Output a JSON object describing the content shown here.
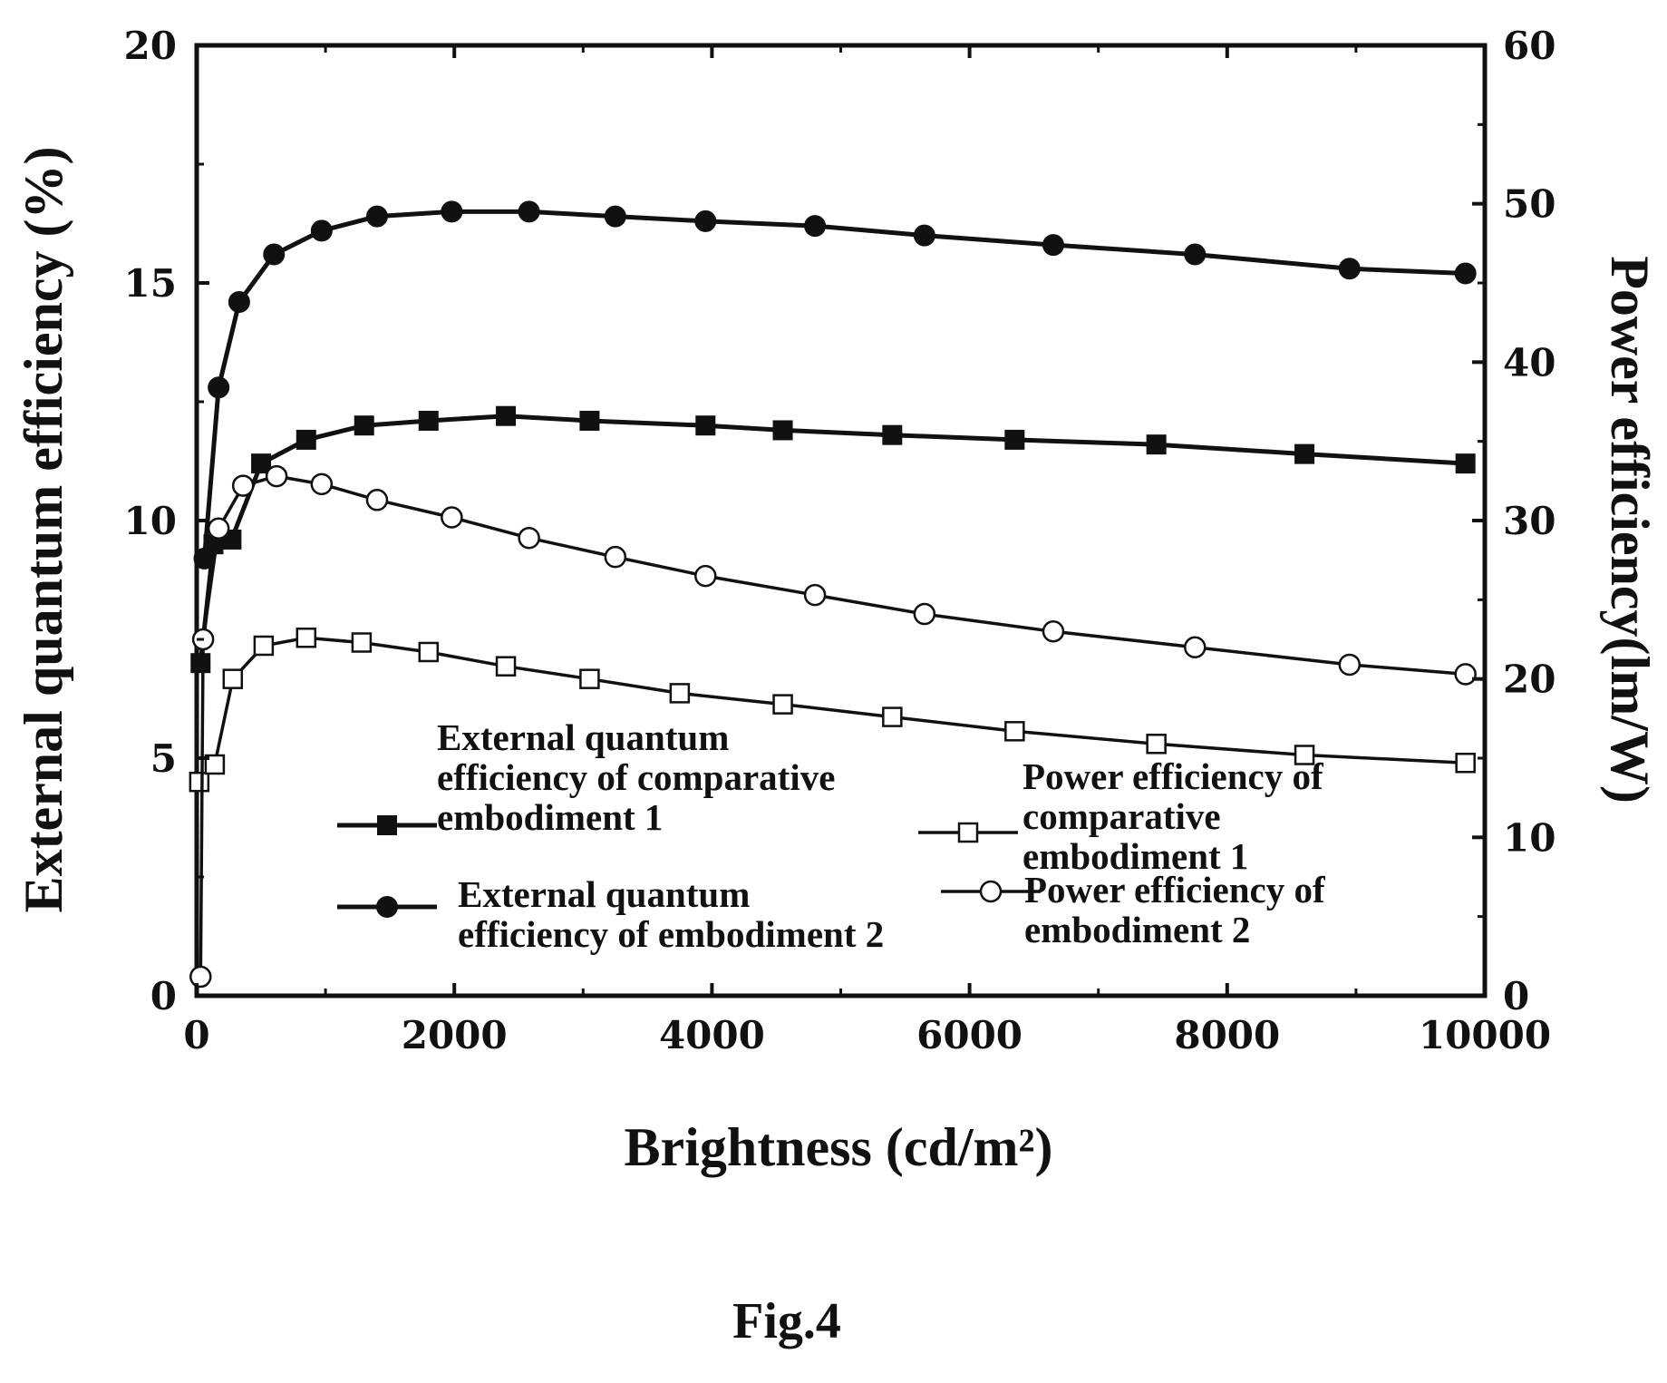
{
  "chart_data": {
    "type": "line",
    "xlabel": "Brightness (cd/m²)",
    "ylabel_left": "External quantum efficiency (%)",
    "ylabel_right": "Power efficiency(lm/W)",
    "xlim": [
      0,
      10000
    ],
    "ylim_left": [
      0,
      20
    ],
    "ylim_right": [
      0,
      60
    ],
    "x_ticks": [
      0,
      2000,
      4000,
      6000,
      8000,
      10000
    ],
    "y_left_ticks": [
      0,
      5,
      10,
      15,
      20
    ],
    "y_right_ticks": [
      0,
      10,
      20,
      30,
      40,
      50,
      60
    ],
    "grid": false,
    "legend_position": "center-bottom, inside plot",
    "series": [
      {
        "key": "eqe_comp1",
        "name": "External quantum efficiency of comparative embodiment 1",
        "legend_lines": [
          "External quantum",
          "efficiency of comparative",
          "embodiment 1"
        ],
        "axis": "left",
        "marker": "filled-square",
        "points": [
          [
            30,
            7.0
          ],
          [
            130,
            9.5
          ],
          [
            270,
            9.6
          ],
          [
            500,
            11.2
          ],
          [
            850,
            11.7
          ],
          [
            1300,
            12.0
          ],
          [
            1800,
            12.1
          ],
          [
            2400,
            12.2
          ],
          [
            3050,
            12.1
          ],
          [
            3950,
            12.0
          ],
          [
            4550,
            11.9
          ],
          [
            5400,
            11.8
          ],
          [
            6350,
            11.7
          ],
          [
            7450,
            11.6
          ],
          [
            8600,
            11.4
          ],
          [
            9850,
            11.2
          ]
        ]
      },
      {
        "key": "eqe_emb2",
        "name": "External quantum efficiency of embodiment 2",
        "legend_lines": [
          "External quantum",
          "efficiency of embodiment 2"
        ],
        "axis": "left",
        "marker": "filled-circle",
        "points": [
          [
            60,
            9.2
          ],
          [
            170,
            12.8
          ],
          [
            330,
            14.6
          ],
          [
            600,
            15.6
          ],
          [
            970,
            16.1
          ],
          [
            1400,
            16.4
          ],
          [
            1980,
            16.5
          ],
          [
            2580,
            16.5
          ],
          [
            3250,
            16.4
          ],
          [
            3950,
            16.3
          ],
          [
            4800,
            16.2
          ],
          [
            5650,
            16.0
          ],
          [
            6650,
            15.8
          ],
          [
            7750,
            15.6
          ],
          [
            8950,
            15.3
          ],
          [
            9850,
            15.2
          ]
        ]
      },
      {
        "key": "pe_comp1",
        "name": "Power efficiency of comparative embodiment 1",
        "legend_lines": [
          "Power efficiency of",
          "comparative",
          "embodiment 1"
        ],
        "axis": "right",
        "marker": "open-square",
        "points": [
          [
            20,
            13.5
          ],
          [
            140,
            14.6
          ],
          [
            280,
            20.0
          ],
          [
            520,
            22.1
          ],
          [
            850,
            22.6
          ],
          [
            1280,
            22.3
          ],
          [
            1800,
            21.7
          ],
          [
            2400,
            20.8
          ],
          [
            3050,
            20.0
          ],
          [
            3750,
            19.1
          ],
          [
            4550,
            18.4
          ],
          [
            5400,
            17.6
          ],
          [
            6350,
            16.7
          ],
          [
            7450,
            15.9
          ],
          [
            8600,
            15.2
          ],
          [
            9850,
            14.7
          ]
        ]
      },
      {
        "key": "pe_emb2",
        "name": "Power efficiency of embodiment 2",
        "legend_lines": [
          "Power efficiency of",
          "embodiment 2"
        ],
        "axis": "right",
        "marker": "open-circle",
        "points": [
          [
            30,
            1.2
          ],
          [
            50,
            22.5
          ],
          [
            170,
            29.5
          ],
          [
            360,
            32.2
          ],
          [
            620,
            32.8
          ],
          [
            970,
            32.3
          ],
          [
            1400,
            31.3
          ],
          [
            1980,
            30.2
          ],
          [
            2580,
            28.9
          ],
          [
            3250,
            27.7
          ],
          [
            3950,
            26.5
          ],
          [
            4800,
            25.3
          ],
          [
            5650,
            24.1
          ],
          [
            6650,
            23.0
          ],
          [
            7750,
            22.0
          ],
          [
            8950,
            20.9
          ],
          [
            9850,
            20.3
          ]
        ]
      }
    ]
  },
  "caption": "Fig.4"
}
